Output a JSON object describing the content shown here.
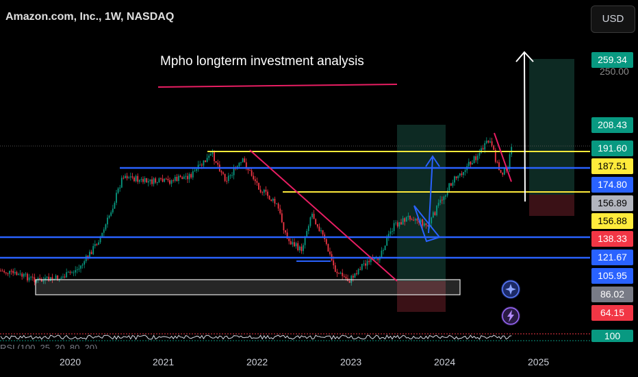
{
  "header": {
    "symbol_title": "Amazon.com, Inc., 1W, NASDAQ",
    "currency_button": "USD"
  },
  "annotation": {
    "text": "Mpho longterm investment analysis"
  },
  "y_axis": {
    "ticks": [
      "250.00"
    ]
  },
  "price_tags": [
    {
      "label": "259.34",
      "bg": "#089981",
      "fg": "#ffffff",
      "y": 259.34
    },
    {
      "label": "208.43",
      "bg": "#089981",
      "fg": "#ffffff",
      "y": 208.43
    },
    {
      "label": "191.60",
      "bg": "#089981",
      "fg": "#ffffff",
      "y": 191.6
    },
    {
      "label": "187.51",
      "bg": "#ffeb3b",
      "fg": "#000000",
      "y": 187.51
    },
    {
      "label": "174.80",
      "bg": "#2962ff",
      "fg": "#ffffff",
      "y": 174.8
    },
    {
      "label": "156.89",
      "bg": "#b2b5be",
      "fg": "#000000",
      "y": 156.89
    },
    {
      "label": "156.88",
      "bg": "#ffeb3b",
      "fg": "#000000",
      "y": 156.88
    },
    {
      "label": "138.33",
      "bg": "#f23645",
      "fg": "#ffffff",
      "y": 138.33
    },
    {
      "label": "121.67",
      "bg": "#2962ff",
      "fg": "#ffffff",
      "y": 121.67
    },
    {
      "label": "105.95",
      "bg": "#2962ff",
      "fg": "#ffffff",
      "y": 105.95
    },
    {
      "label": "86.02",
      "bg": "#787b86",
      "fg": "#ffffff",
      "y": 86.02
    },
    {
      "label": "64.15",
      "bg": "#f23645",
      "fg": "#ffffff",
      "y": 64.15
    }
  ],
  "indicator": {
    "label": "RSI (100, 25, 20, 80, 20)",
    "value_tag": "100"
  },
  "x_axis": {
    "labels": [
      "2020",
      "2021",
      "2022",
      "2023",
      "2024",
      "2025"
    ]
  },
  "icons": {
    "sparkle": "sparkle-icon",
    "lightning": "lightning-icon"
  },
  "colors": {
    "up": "#089981",
    "down": "#f23645",
    "yellow_level": "#ffeb3b",
    "blue_level": "#2962ff",
    "trendline": "#e91e63"
  },
  "chart_data": {
    "type": "candlestick",
    "title": "Amazon.com, Inc., 1W, NASDAQ",
    "xlabel": "",
    "ylabel": "",
    "x": [
      "2019-07",
      "2020-01",
      "2020-07",
      "2021-01",
      "2021-07",
      "2022-01",
      "2022-07",
      "2023-01",
      "2023-07",
      "2024-01",
      "2024-07",
      "2024-09"
    ],
    "series": [
      {
        "values": [
          95,
          93,
          150,
          160,
          175,
          160,
          130,
          90,
          135,
          155,
          195,
          190
        ]
      }
    ],
    "horizontal_levels": [
      191.6,
      187.51,
      174.8,
      156.88,
      121.67,
      105.95
    ],
    "grid": false
  }
}
